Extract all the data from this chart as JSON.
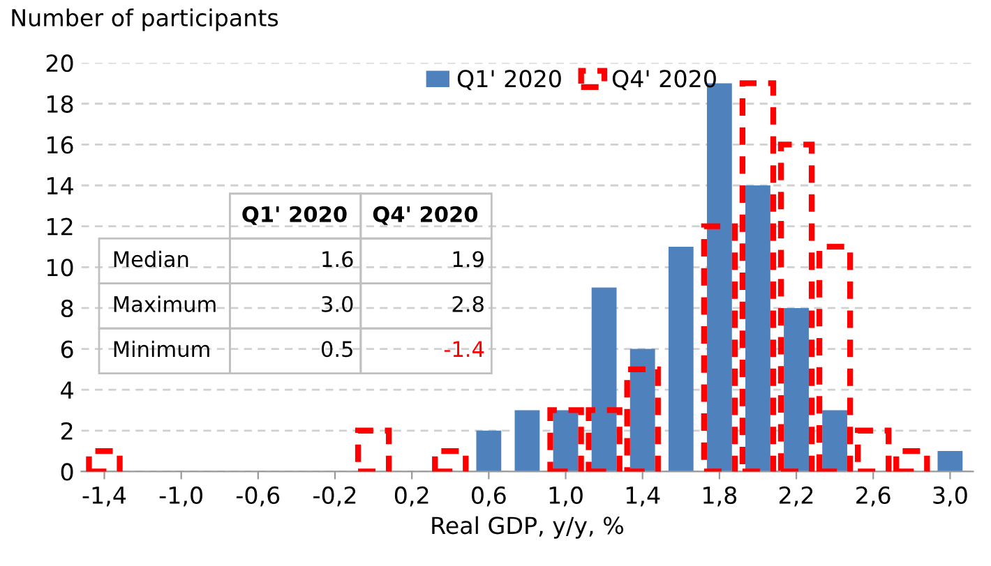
{
  "chart_data": {
    "type": "bar",
    "ylabel": "Number of participants",
    "xlabel": "Real GDP, y/y, %",
    "categories": [
      "-1,4",
      null,
      "-1,0",
      null,
      "-0,6",
      null,
      "-0,2",
      null,
      "0,2",
      null,
      "0,6",
      null,
      "1,0",
      null,
      "1,4",
      null,
      "1,8",
      null,
      "2,2",
      null,
      "2,6",
      null,
      "3,0"
    ],
    "series": [
      {
        "name": "Q1' 2020",
        "color": "#4f81bd",
        "values": [
          0,
          0,
          0,
          0,
          0,
          0,
          0,
          0,
          0,
          0,
          2,
          3,
          3,
          9,
          6,
          11,
          19,
          14,
          8,
          3,
          0,
          0,
          1
        ]
      },
      {
        "name": "Q4' 2020",
        "color": "#ff0000",
        "line_style": "dashed",
        "values": [
          1,
          0,
          0,
          0,
          0,
          0,
          0,
          2,
          0,
          1,
          0,
          0,
          3,
          3,
          5,
          0,
          12,
          19,
          16,
          11,
          2,
          1,
          0
        ]
      }
    ],
    "ylim": [
      0,
      20
    ],
    "yticks": [
      0,
      2,
      4,
      6,
      8,
      10,
      12,
      14,
      16,
      18,
      20
    ],
    "grid": "y",
    "legend": "top",
    "annotations": [
      "Q1' 2020",
      "Q4' 2020",
      "Median",
      "1.6",
      "1.9",
      "Maximum",
      "3.0",
      "2.8",
      "Minimum",
      "0.5",
      "-1.4"
    ]
  }
}
